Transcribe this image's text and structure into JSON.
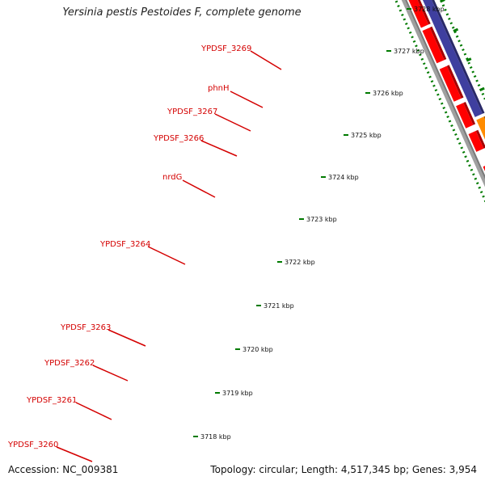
{
  "title": "Yersinia pestis Pestoides F, complete genome",
  "footer": {
    "accession": "Accession: NC_009381",
    "topology": "Topology: circular; Length: 4,517,345 bp; Genes: 3,954"
  },
  "colors": {
    "backbone": "#a0a0a0",
    "forward_gene": "#3f3f9f",
    "reverse_gene": "#ff0000",
    "light_blue_gene": "#1ec8ff",
    "orange_gene": "#ff8c00",
    "khaki_gene": "#c8b878",
    "label_red": "#d40000",
    "tick_green": "#007a00"
  },
  "gene_labels": [
    "YPDSF_3269",
    "phnH",
    "YPDSF_3267",
    "YPDSF_3266",
    "nrdG",
    "YPDSF_3264",
    "YPDSF_3263",
    "YPDSF_3262",
    "YPDSF_3261",
    "YPDSF_3260"
  ],
  "scale_labels": [
    "3728 kbp",
    "3727 kbp",
    "3726 kbp",
    "3725 kbp",
    "3724 kbp",
    "3723 kbp",
    "3722 kbp",
    "3721 kbp",
    "3720 kbp",
    "3719 kbp",
    "3718 kbp"
  ]
}
